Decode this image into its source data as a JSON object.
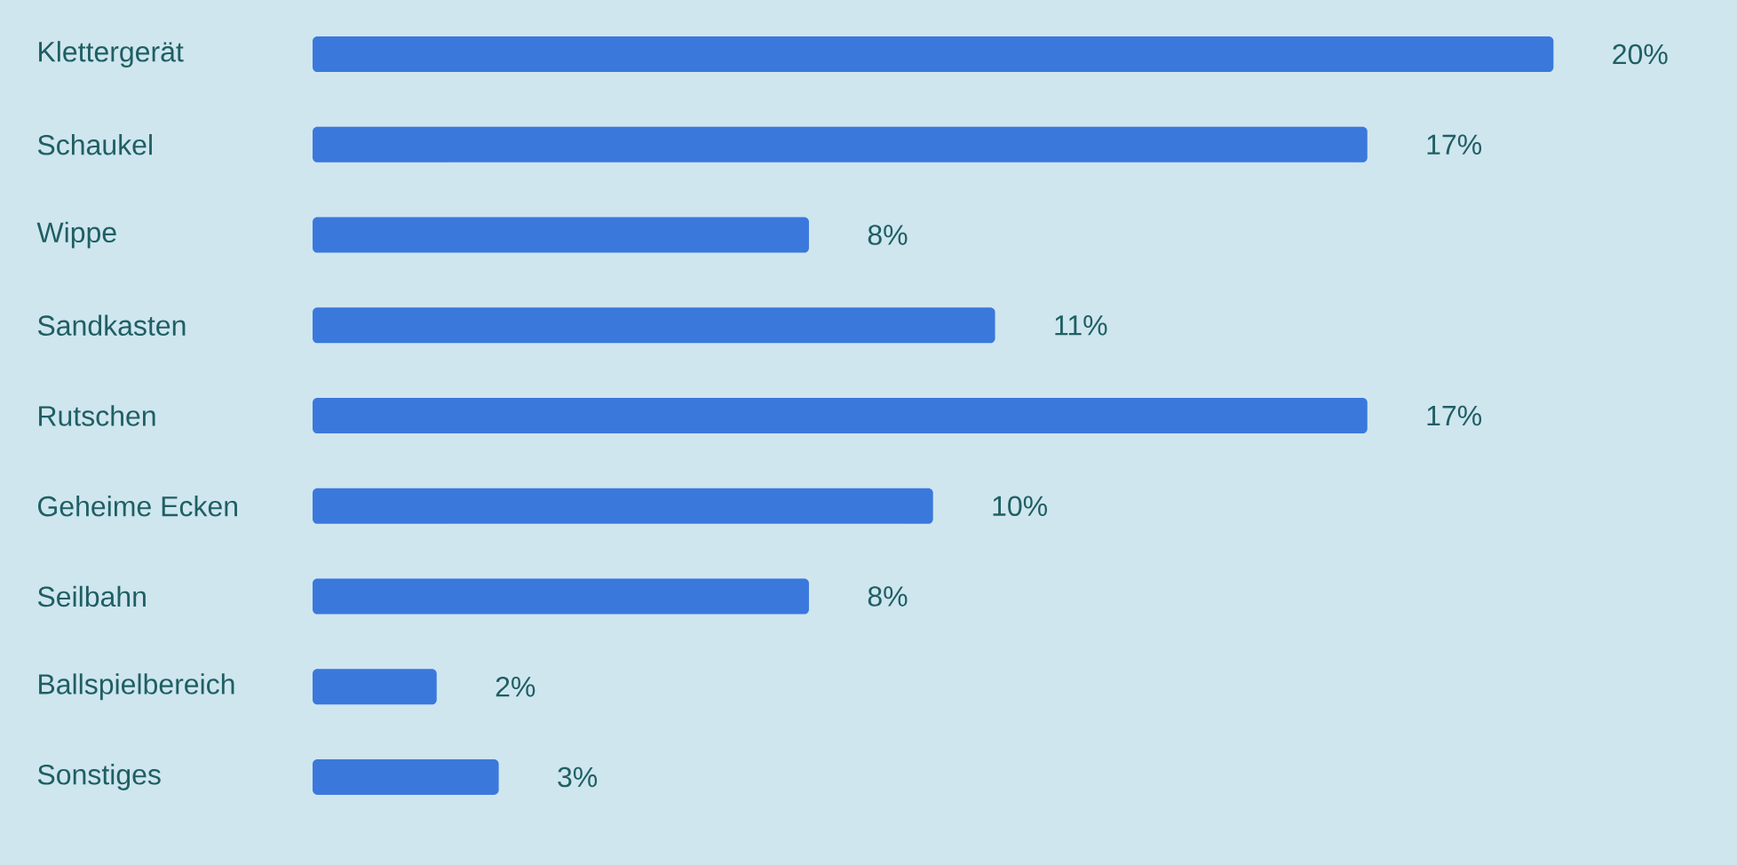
{
  "chart_data": {
    "type": "bar",
    "orientation": "horizontal",
    "categories": [
      "Klettergerät",
      "Schaukel",
      "Wippe",
      "Sandkasten",
      "Rutschen",
      "Geheime Ecken",
      "Seilbahn",
      "Ballspielbereich",
      "Sonstiges"
    ],
    "values": [
      20,
      17,
      8,
      11,
      17,
      10,
      8,
      2,
      3
    ],
    "value_labels": [
      "20%",
      "17%",
      "8%",
      "11%",
      "17%",
      "10%",
      "8%",
      "2%",
      "3%"
    ],
    "color": "#3b78dc"
  }
}
